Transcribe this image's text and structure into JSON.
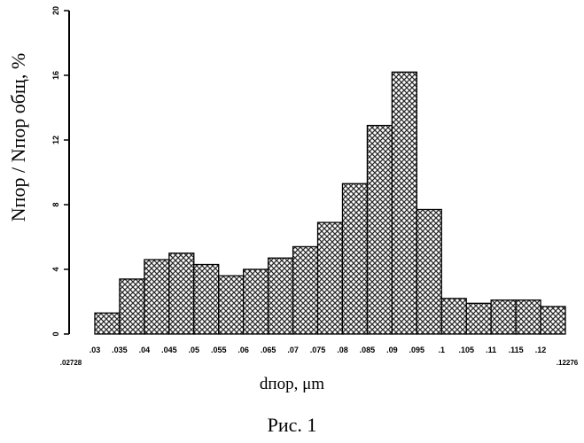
{
  "chart_data": {
    "type": "bar",
    "ylabel": "Nпор / Nпор общ, %",
    "xlabel": "dпор, μm",
    "caption": "Рис. 1",
    "ylim": [
      0,
      20
    ],
    "yticks": [
      "0",
      "4",
      "8",
      "12",
      "16",
      "20"
    ],
    "xticks": [
      ".03",
      ".035",
      ".04",
      ".045",
      ".05",
      ".055",
      ".06",
      ".065",
      ".07",
      ".075",
      ".08",
      ".085",
      ".09",
      ".095",
      ".1",
      ".105",
      ".11",
      ".115",
      ".12"
    ],
    "x_range_labels": [
      ".02728",
      ".12276"
    ],
    "bin_width": 0.005,
    "bins": [
      {
        "x": 0.0325,
        "value": 1.3
      },
      {
        "x": 0.0375,
        "value": 3.4
      },
      {
        "x": 0.0425,
        "value": 4.6
      },
      {
        "x": 0.0475,
        "value": 5.0
      },
      {
        "x": 0.0525,
        "value": 4.3
      },
      {
        "x": 0.0575,
        "value": 3.6
      },
      {
        "x": 0.0625,
        "value": 4.0
      },
      {
        "x": 0.0675,
        "value": 4.7
      },
      {
        "x": 0.0725,
        "value": 5.4
      },
      {
        "x": 0.0775,
        "value": 6.9
      },
      {
        "x": 0.0825,
        "value": 9.3
      },
      {
        "x": 0.0875,
        "value": 12.9
      },
      {
        "x": 0.0925,
        "value": 16.2
      },
      {
        "x": 0.0975,
        "value": 7.7
      },
      {
        "x": 0.1025,
        "value": 2.2
      },
      {
        "x": 0.1075,
        "value": 1.9
      },
      {
        "x": 0.1125,
        "value": 2.1
      },
      {
        "x": 0.1175,
        "value": 2.1
      },
      {
        "x": 0.1225,
        "value": 1.7
      }
    ],
    "colors": {
      "bar_fill": "#ffffff",
      "hatch": "#2a2a2a",
      "axis": "#000000"
    }
  }
}
